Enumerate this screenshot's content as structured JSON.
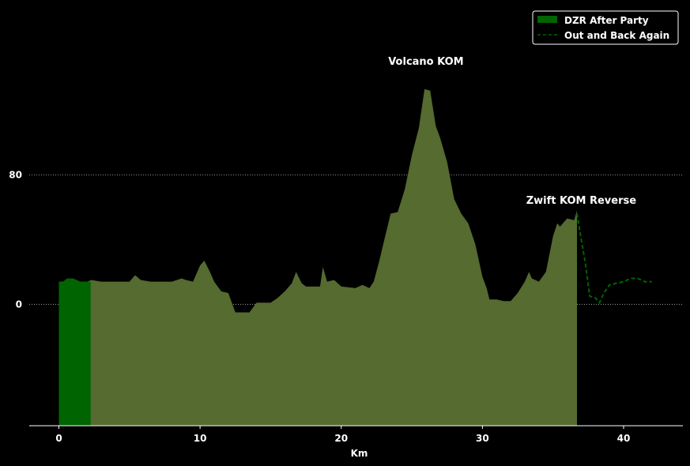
{
  "chart_data": {
    "type": "area",
    "xlabel": "Km",
    "ylabel": "",
    "xlim": [
      -2.1,
      44.2
    ],
    "ylim": [
      -75,
      188
    ],
    "x_ticks": [
      0,
      10,
      20,
      30,
      40
    ],
    "y_ticks": [
      0,
      80
    ],
    "grid": "horizontal dotted at y-ticks",
    "legend_placement": "top-right",
    "colors": {
      "background": "#000000",
      "elevation_fill": "#556b2f",
      "highlight_fill": "#006400",
      "route_line": "#006400",
      "grid": "#bbbbbb",
      "text": "#ffffff"
    },
    "series": [
      {
        "name": "DZR After Party",
        "kind": "highlighted-area",
        "x": [
          0,
          0.3,
          0.6,
          1.0,
          1.5,
          2.0,
          2.25
        ],
        "y": [
          14,
          14,
          16,
          16,
          14,
          14,
          14
        ]
      },
      {
        "name": "Out and Back Again",
        "kind": "dashed-line",
        "x": [
          36.7,
          37.0,
          37.3,
          37.6,
          38.0,
          38.3,
          38.6,
          39.0,
          39.5,
          40.0,
          40.5,
          41.0,
          41.5,
          42.0
        ],
        "y": [
          56,
          40,
          25,
          5,
          4,
          1,
          7,
          12,
          13,
          14,
          16,
          16,
          14,
          14
        ]
      }
    ],
    "elevation_profile": {
      "x": [
        0,
        0.3,
        0.6,
        1.0,
        1.5,
        2.0,
        2.3,
        3.0,
        4.0,
        5.0,
        5.4,
        5.8,
        6.5,
        7.0,
        8.0,
        8.7,
        9.0,
        9.5,
        10.0,
        10.3,
        10.7,
        11.0,
        11.5,
        12.0,
        12.5,
        12.7,
        13.0,
        13.5,
        14.0,
        14.3,
        15.0,
        15.5,
        16.0,
        16.5,
        16.8,
        17.2,
        17.5,
        18.0,
        18.5,
        18.7,
        19.0,
        19.5,
        20.0,
        21.0,
        21.5,
        22.0,
        22.3,
        22.7,
        23.0,
        23.5,
        24.0,
        24.5,
        25.0,
        25.5,
        25.9,
        26.3,
        26.7,
        27.0,
        27.5,
        28.0,
        28.5,
        29.0,
        29.5,
        30.0,
        30.3,
        30.5,
        31.0,
        31.5,
        32.0,
        32.5,
        33.0,
        33.3,
        33.5,
        34.0,
        34.5,
        35.0,
        35.3,
        35.5,
        36.0,
        36.5,
        36.7
      ],
      "y": [
        14,
        14,
        16,
        16,
        14,
        14,
        15,
        14,
        14,
        14,
        18,
        15,
        14,
        14,
        14,
        16,
        15,
        14,
        24,
        27,
        20,
        14,
        8,
        7,
        -5,
        -5,
        -5,
        -5,
        1,
        1,
        1,
        4,
        8,
        13,
        20,
        13,
        11,
        11,
        11,
        23,
        14,
        15,
        11,
        10,
        12,
        10,
        14,
        27,
        38,
        56,
        57,
        71,
        92,
        109,
        133,
        132,
        110,
        103,
        88,
        65,
        56,
        50,
        37,
        17,
        10,
        3,
        3,
        2,
        2,
        7,
        14,
        20,
        16,
        14,
        20,
        42,
        50,
        48,
        53,
        52,
        58
      ]
    },
    "annotations": [
      {
        "text": "Volcano KOM",
        "x": 26.0,
        "y": 148
      },
      {
        "text": "Zwift KOM Reverse",
        "x": 37.0,
        "y": 62
      }
    ]
  }
}
